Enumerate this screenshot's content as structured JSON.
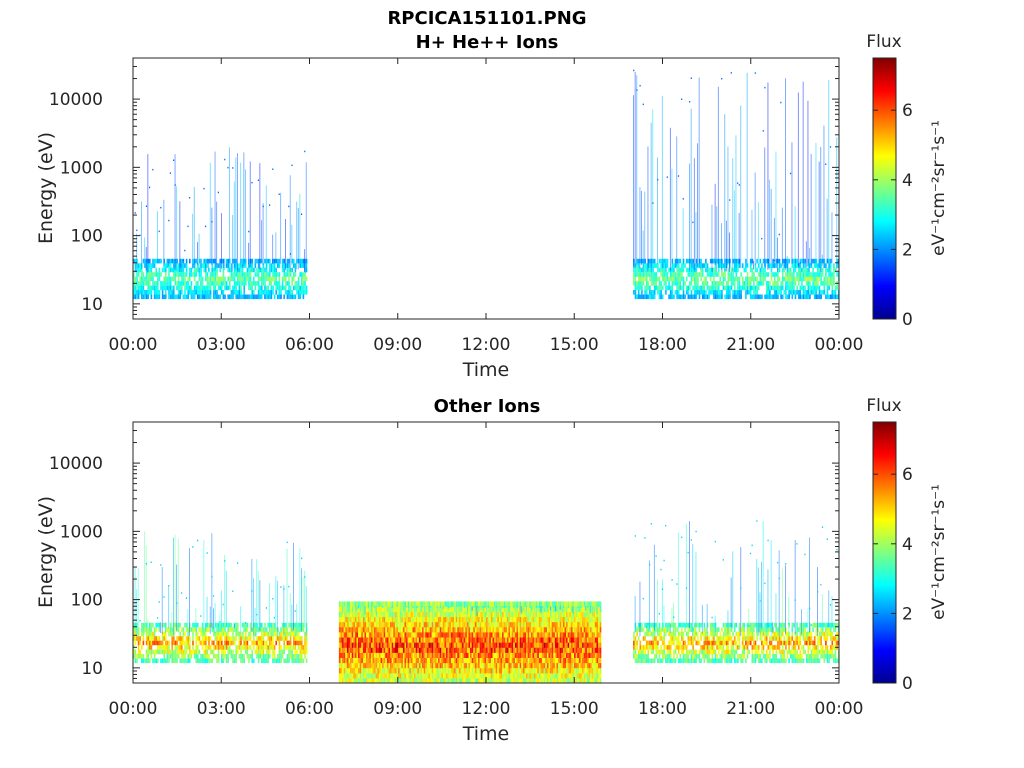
{
  "figure": {
    "title": "RPCICA151101.PNG",
    "colormap": "jet"
  },
  "chart_data": [
    {
      "type": "heatmap",
      "title": "H+ He++ Ions",
      "xlabel": "Time",
      "ylabel": "Energy (eV)",
      "x_ticks": [
        "00:00",
        "03:00",
        "06:00",
        "09:00",
        "12:00",
        "15:00",
        "18:00",
        "21:00",
        "00:00"
      ],
      "xlim_hours": [
        0,
        24
      ],
      "y_scale": "log",
      "y_ticks": [
        "10",
        "100",
        "1000",
        "10000"
      ],
      "ylim": [
        6,
        40000
      ],
      "colorbar": {
        "label": "Flux",
        "units": "eV⁻¹cm⁻²sr⁻¹s⁻¹",
        "range": [
          0,
          7.5
        ],
        "ticks": [
          "0",
          "2",
          "4",
          "6"
        ]
      },
      "segments": [
        {
          "t_start": 0.0,
          "t_end": 5.9,
          "e_low": 12,
          "e_high": 40,
          "flux_peak": 4.2,
          "e_noise_high": 2000
        },
        {
          "t_start": 17.0,
          "t_end": 24.0,
          "e_low": 12,
          "e_high": 40,
          "flux_peak": 4.3,
          "e_noise_high": 30000
        }
      ]
    },
    {
      "type": "heatmap",
      "title": "Other Ions",
      "xlabel": "Time",
      "ylabel": "Energy (eV)",
      "x_ticks": [
        "00:00",
        "03:00",
        "06:00",
        "09:00",
        "12:00",
        "15:00",
        "18:00",
        "21:00",
        "00:00"
      ],
      "xlim_hours": [
        0,
        24
      ],
      "y_scale": "log",
      "y_ticks": [
        "10",
        "100",
        "1000",
        "10000"
      ],
      "ylim": [
        6,
        40000
      ],
      "colorbar": {
        "label": "Flux",
        "units": "eV⁻¹cm⁻²sr⁻¹s⁻¹",
        "range": [
          0,
          7.5
        ],
        "ticks": [
          "0",
          "2",
          "4",
          "6"
        ]
      },
      "segments": [
        {
          "t_start": 0.0,
          "t_end": 5.9,
          "e_low": 12,
          "e_high": 40,
          "flux_peak": 6.2,
          "e_noise_high": 1000
        },
        {
          "t_start": 7.0,
          "t_end": 15.9,
          "e_low": 6,
          "e_high": 80,
          "flux_peak": 7.2,
          "e_noise_high": 80
        },
        {
          "t_start": 17.0,
          "t_end": 24.0,
          "e_low": 12,
          "e_high": 40,
          "flux_peak": 6.2,
          "e_noise_high": 1500
        }
      ]
    }
  ]
}
